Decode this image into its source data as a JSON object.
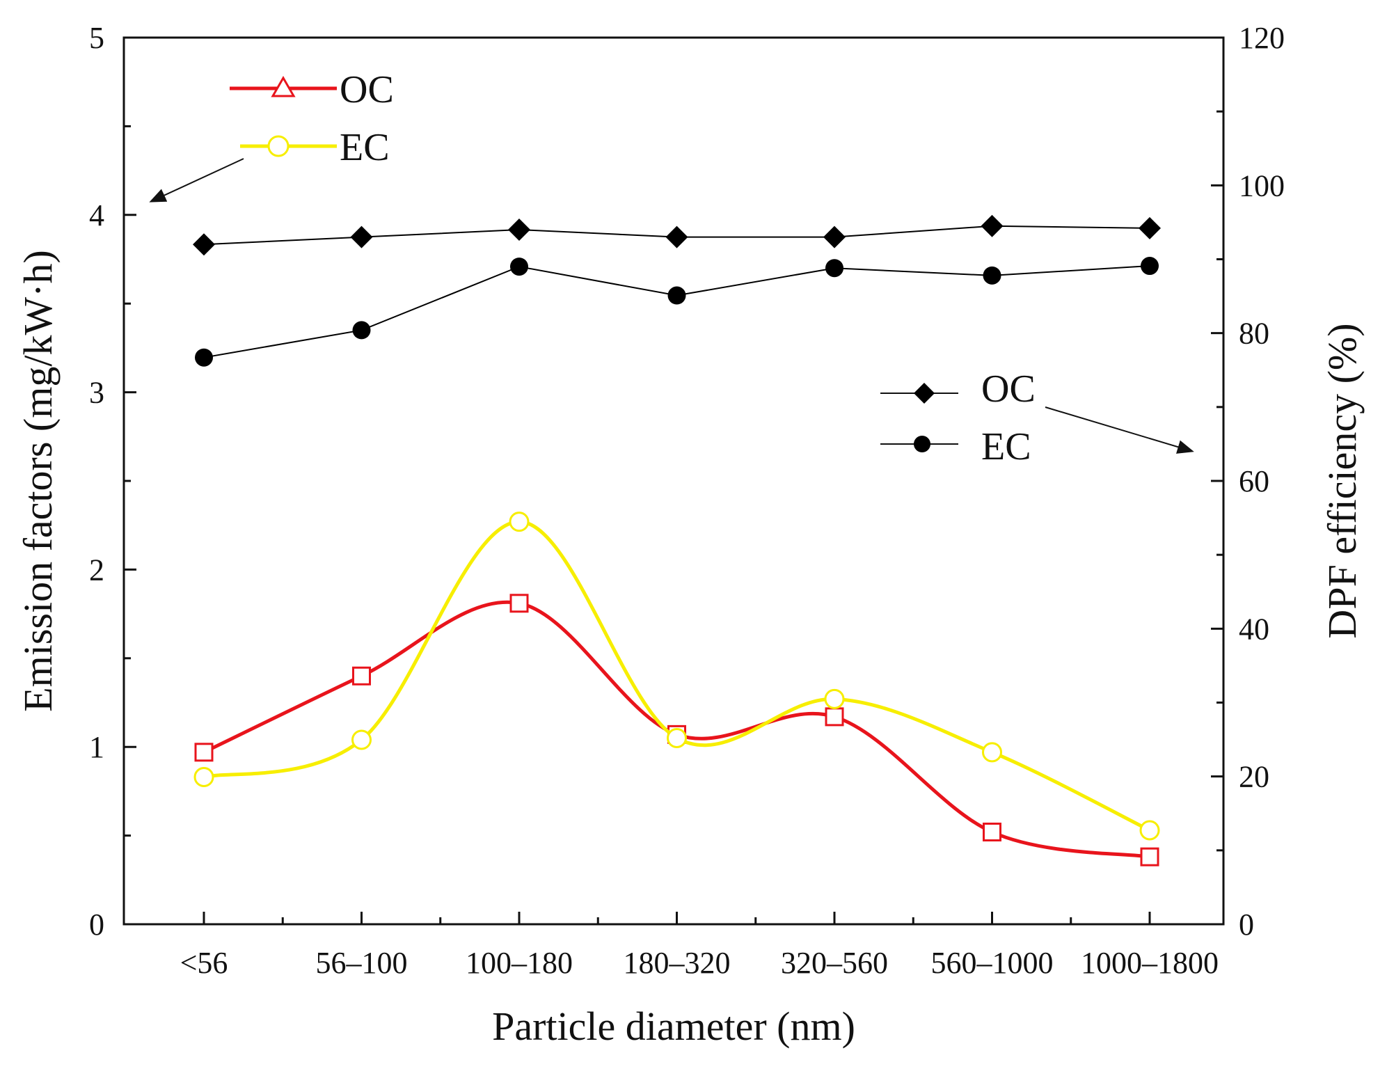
{
  "chart_data": {
    "type": "line",
    "title": "",
    "xlabel": "Particle diameter (nm)",
    "ylabel_left": "Emission factors (mg/kW·h)",
    "ylabel_right": "DPF efficiency (%)",
    "categories": [
      "<56",
      "56–100",
      "100–180",
      "180–320",
      "320–560",
      "560–1000",
      "1000–1800"
    ],
    "y_left": {
      "lim": [
        0,
        5
      ],
      "ticks": [
        0,
        1,
        2,
        3,
        4,
        5
      ],
      "tick_labels": [
        "0",
        "1",
        "2",
        "3",
        "4",
        "5"
      ]
    },
    "y_right": {
      "lim": [
        0,
        120
      ],
      "ticks": [
        0,
        20,
        40,
        60,
        80,
        100,
        120
      ],
      "tick_labels": [
        "0",
        "20",
        "40",
        "60",
        "80",
        "100",
        "120"
      ]
    },
    "grid": false,
    "series": [
      {
        "name": "OC",
        "axis": "left",
        "quantity": "emission factor",
        "color": "#e8141c",
        "marker": "open-square",
        "smooth": true,
        "values": [
          0.97,
          1.4,
          1.81,
          1.07,
          1.17,
          0.52,
          0.38
        ]
      },
      {
        "name": "EC",
        "axis": "left",
        "quantity": "emission factor",
        "color": "#f7ee00",
        "marker": "open-circle",
        "smooth": true,
        "values": [
          0.83,
          1.04,
          2.27,
          1.05,
          1.27,
          0.97,
          0.53
        ]
      },
      {
        "name": "OC",
        "axis": "right",
        "quantity": "DPF efficiency",
        "color": "#000000",
        "marker": "filled-diamond",
        "smooth": false,
        "values": [
          92.0,
          93.0,
          94.0,
          93.0,
          93.0,
          94.5,
          94.2
        ]
      },
      {
        "name": "EC",
        "axis": "right",
        "quantity": "DPF efficiency",
        "color": "#000000",
        "marker": "filled-circle",
        "smooth": false,
        "values": [
          76.7,
          80.4,
          89.0,
          85.1,
          88.8,
          87.8,
          89.1
        ]
      }
    ],
    "legends": [
      {
        "placement": "top-left",
        "entries": [
          {
            "label": "OC",
            "marker": "open-triangle",
            "color": "#e8141c"
          },
          {
            "label": "EC",
            "marker": "open-circle",
            "color": "#f7ee00"
          }
        ],
        "arrow": "points to left axis"
      },
      {
        "placement": "middle-right",
        "entries": [
          {
            "label": "OC",
            "marker": "filled-diamond",
            "color": "#000000"
          },
          {
            "label": "EC",
            "marker": "filled-circle",
            "color": "#000000"
          }
        ],
        "arrow": "points to right axis"
      }
    ]
  }
}
